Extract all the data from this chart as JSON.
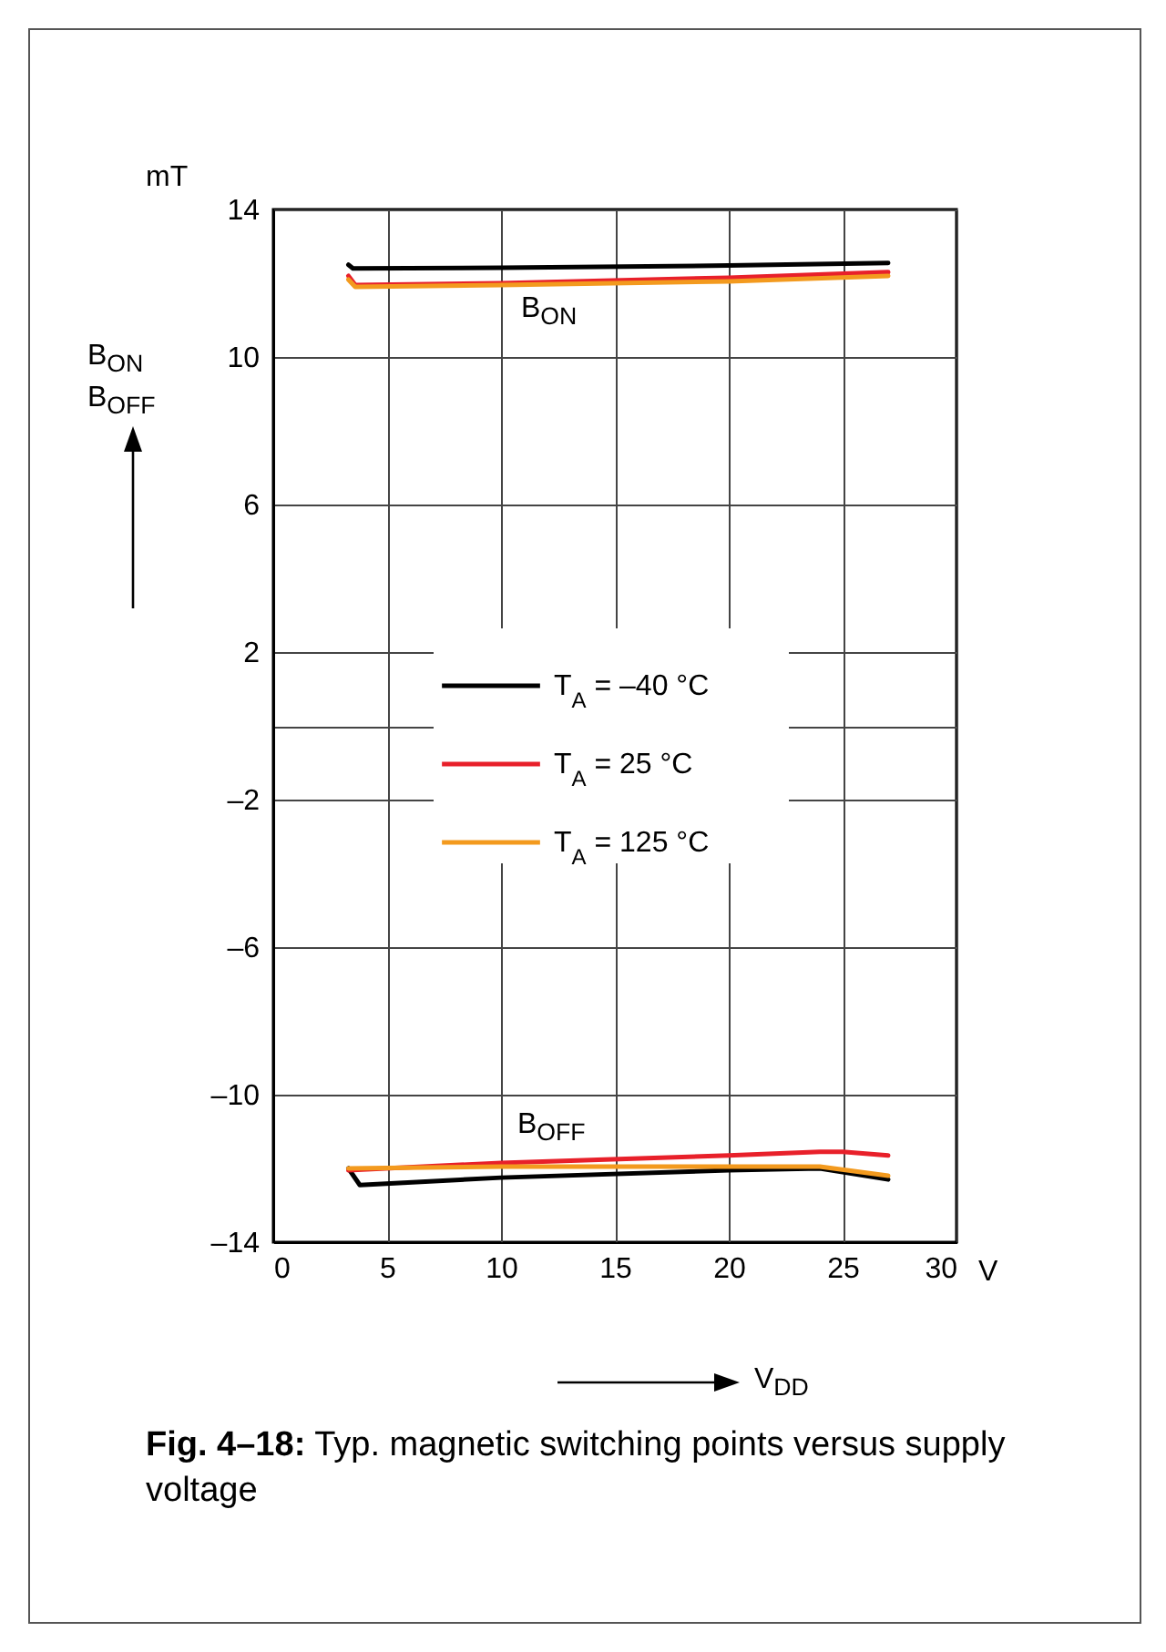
{
  "chart_data": {
    "type": "line",
    "title": "Fig. 4–18: Typ. magnetic switching points versus supply voltage",
    "ylabel": "B$_{ON}$\nB$_{OFF}$",
    "xlabel": "V$_{DD}$",
    "annotations": [
      "mT",
      "V",
      "B$_{ON}$",
      "B$_{OFF}$"
    ],
    "xlim": [
      0,
      30
    ],
    "xticks": [
      0,
      5,
      10,
      15,
      20,
      25,
      30
    ],
    "ylim": [
      -14,
      14
    ],
    "yticks": [
      14,
      10,
      6,
      2,
      {
        "value": 0,
        "label": null
      },
      {
        "value": -2,
        "label": "–2"
      },
      {
        "value": -6,
        "label": "–6"
      },
      {
        "value": -10,
        "label": "–10"
      },
      {
        "value": -14,
        "label": "–14"
      }
    ],
    "grid": true,
    "legend": "center",
    "line_style": "solid",
    "marker": "none",
    "series": [
      {
        "name": "T$_{A}$ = –40 °C",
        "color": "#000000",
        "x": [
          3.3,
          3.5,
          10,
          20,
          27,
          null,
          3.3,
          3.8,
          10,
          20,
          24,
          27
        ],
        "values": [
          12.5,
          12.4,
          12.42,
          12.48,
          12.55,
          null,
          -12.0,
          -12.45,
          -12.25,
          -12.05,
          -12.0,
          -12.3
        ]
      },
      {
        "name": "T$_{A}$ = 25 °C",
        "color": "#e8202a",
        "x": [
          3.3,
          3.6,
          10,
          20,
          27,
          null,
          3.3,
          10,
          20,
          24,
          25,
          27
        ],
        "values": [
          12.2,
          11.95,
          12.0,
          12.15,
          12.3,
          null,
          -12.05,
          -11.85,
          -11.65,
          -11.55,
          -11.55,
          -11.65
        ]
      },
      {
        "name": "T$_{A}$ = 125 °C",
        "color": "#f39a1e",
        "x": [
          3.3,
          3.6,
          10,
          20,
          27,
          null,
          3.3,
          10,
          20,
          24,
          27
        ],
        "values": [
          12.1,
          11.9,
          11.95,
          12.05,
          12.2,
          null,
          -12.0,
          -11.95,
          -11.95,
          -11.95,
          -12.2
        ]
      }
    ]
  }
}
